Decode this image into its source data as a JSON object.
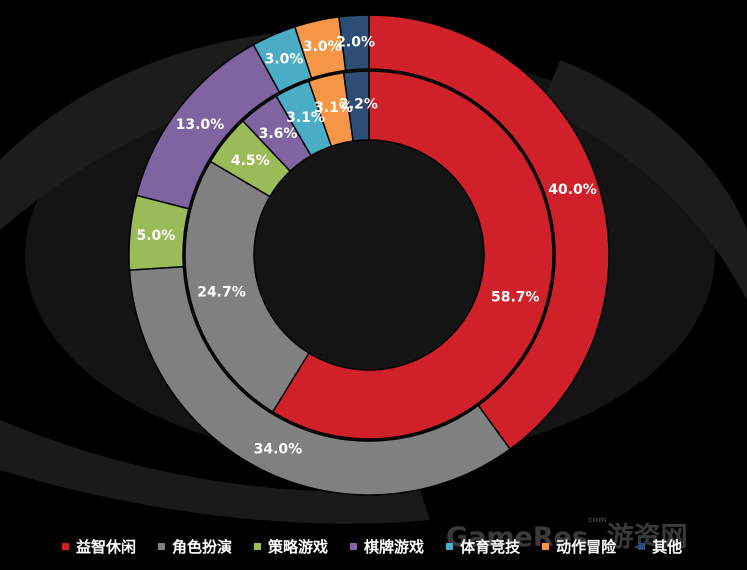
{
  "chart_data": {
    "type": "donut",
    "categories": [
      "益智休闲",
      "角色扮演",
      "策略游戏",
      "棋牌游戏",
      "体育竞技",
      "动作冒险",
      "其他"
    ],
    "colors": [
      "#d0212b",
      "#808080",
      "#9bbb59",
      "#8064a2",
      "#4bacc6",
      "#f79646",
      "#2c4d75"
    ],
    "series": [
      {
        "ring": "outer",
        "values": [
          40.0,
          34.0,
          5.0,
          13.0,
          3.0,
          3.0,
          2.0
        ],
        "labels": [
          "40.0%",
          "34.0%",
          "5.0%",
          "13.0%",
          "3.0%",
          "3.0%",
          "2.0%"
        ]
      },
      {
        "ring": "inner",
        "values": [
          58.7,
          24.7,
          4.5,
          3.6,
          3.1,
          3.1,
          2.2
        ],
        "labels": [
          "58.7%",
          "24.7%",
          "4.5%",
          "3.6%",
          "3.1%",
          "3.1%",
          "2.2%"
        ]
      }
    ],
    "legend": {
      "position": "bottom"
    }
  },
  "watermark": {
    "text": "GameRes",
    "small": "com",
    "cn": "游资网"
  }
}
